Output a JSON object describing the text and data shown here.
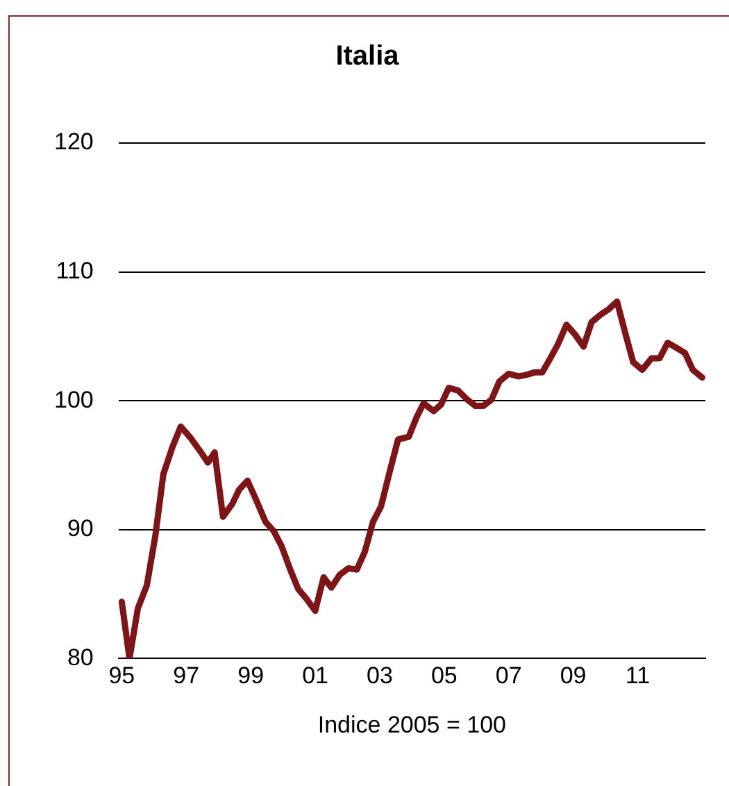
{
  "chart_data": {
    "type": "line",
    "title": "Italia",
    "xlabel": "Indice 2005 = 100",
    "x": [
      1995.0,
      1995.24,
      1995.5,
      1995.78,
      1996.04,
      1996.29,
      1996.57,
      1996.83,
      1997.14,
      1997.43,
      1997.67,
      1997.88,
      1998.14,
      1998.43,
      1998.64,
      1998.9,
      1999.17,
      1999.46,
      1999.71,
      1999.96,
      2000.21,
      2000.47,
      2000.74,
      2001.0,
      2001.26,
      2001.5,
      2001.76,
      2002.03,
      2002.29,
      2002.54,
      2002.79,
      2003.04,
      2003.32,
      2003.57,
      2003.9,
      2004.14,
      2004.36,
      2004.67,
      2004.9,
      2005.14,
      2005.43,
      2005.71,
      2005.97,
      2006.21,
      2006.47,
      2006.71,
      2007.0,
      2007.29,
      2007.54,
      2007.79,
      2008.04,
      2008.29,
      2008.53,
      2008.79,
      2009.04,
      2009.32,
      2009.57,
      2009.86,
      2010.1,
      2010.36,
      2010.61,
      2010.86,
      2011.14,
      2011.43,
      2011.68,
      2011.93,
      2012.21,
      2012.47,
      2012.71,
      2013.0
    ],
    "series": [
      {
        "color": "#7f1416",
        "values": [
          84.4,
          80.0,
          83.9,
          85.7,
          89.5,
          94.3,
          96.4,
          98.0,
          97.1,
          96.1,
          95.2,
          96.0,
          91.0,
          92.0,
          93.1,
          93.8,
          92.3,
          90.6,
          89.9,
          88.7,
          87.0,
          85.4,
          84.6,
          83.7,
          86.3,
          85.5,
          86.5,
          87.0,
          86.9,
          88.3,
          90.6,
          91.8,
          94.6,
          97.0,
          97.2,
          98.7,
          99.8,
          99.2,
          99.7,
          101.0,
          100.8,
          100.1,
          99.6,
          99.6,
          100.1,
          101.5,
          102.1,
          101.9,
          102.0,
          102.2,
          102.2,
          103.3,
          104.4,
          105.9,
          105.2,
          104.2,
          106.1,
          106.7,
          107.1,
          107.7,
          105.3,
          103.0,
          102.4,
          103.3,
          103.3,
          104.5,
          104.1,
          103.7,
          102.4,
          101.8
        ]
      }
    ],
    "xlim": [
      1994.9,
      2013.1
    ],
    "xticks": [
      {
        "value": 1995,
        "label": "95"
      },
      {
        "value": 1997,
        "label": "97"
      },
      {
        "value": 1999,
        "label": "99"
      },
      {
        "value": 2001,
        "label": "01"
      },
      {
        "value": 2003,
        "label": "03"
      },
      {
        "value": 2005,
        "label": "05"
      },
      {
        "value": 2007,
        "label": "07"
      },
      {
        "value": 2009,
        "label": "09"
      },
      {
        "value": 2011,
        "label": "11"
      }
    ],
    "ylim": [
      80,
      120
    ],
    "yticks": [
      80,
      90,
      100,
      110,
      120
    ],
    "grid": "y",
    "legend": false,
    "marker": "none",
    "line_style": "solid"
  }
}
